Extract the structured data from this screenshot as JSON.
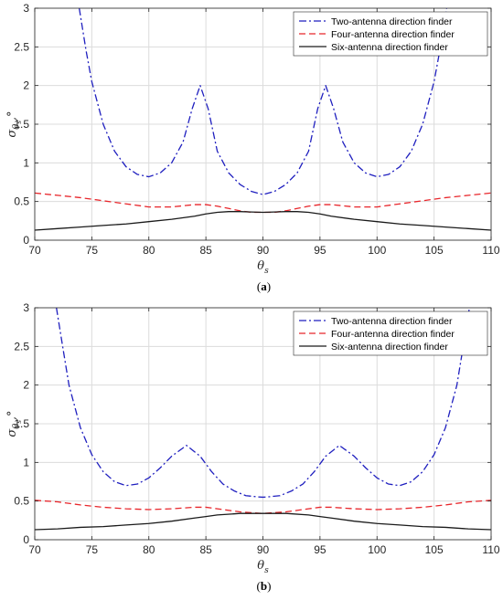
{
  "chart_data": [
    {
      "type": "line",
      "panel_label": "(a)",
      "xlabel": "θs",
      "ylabel": "σθs,°",
      "xlim": [
        70,
        110
      ],
      "ylim": [
        0,
        3
      ],
      "xticks": [
        70,
        75,
        80,
        85,
        90,
        95,
        100,
        105,
        110
      ],
      "yticks": [
        0,
        0.5,
        1,
        1.5,
        2,
        2.5,
        3
      ],
      "grid": true,
      "legend_position": "top-right",
      "series": [
        {
          "name": "Two-antenna direction finder",
          "color": "#1f1fbf",
          "style": "dashdot",
          "x": [
            73.9,
            74.5,
            75,
            76,
            77,
            78,
            79,
            80,
            81,
            82,
            83,
            83.8,
            84.5,
            85.2,
            86,
            87,
            88,
            89,
            90,
            91,
            92,
            93,
            94,
            94.8,
            95.5,
            96.2,
            97,
            98,
            99,
            100,
            101,
            102,
            103,
            104,
            105,
            105.5,
            106.1
          ],
          "values": [
            3.0,
            2.45,
            2.05,
            1.5,
            1.15,
            0.95,
            0.85,
            0.82,
            0.87,
            1.0,
            1.27,
            1.7,
            2.0,
            1.7,
            1.15,
            0.87,
            0.72,
            0.63,
            0.59,
            0.63,
            0.72,
            0.87,
            1.15,
            1.7,
            2.0,
            1.7,
            1.27,
            1.0,
            0.87,
            0.82,
            0.85,
            0.95,
            1.15,
            1.5,
            2.05,
            2.45,
            3.0
          ]
        },
        {
          "name": "Four-antenna direction finder",
          "color": "#e8262b",
          "style": "dashed",
          "x": [
            70,
            72,
            74,
            76,
            78,
            80,
            82,
            84,
            85,
            86,
            87,
            88,
            89,
            90,
            91,
            92,
            93,
            94,
            95,
            96,
            98,
            100,
            102,
            104,
            106,
            108,
            110
          ],
          "values": [
            0.61,
            0.58,
            0.55,
            0.51,
            0.47,
            0.43,
            0.43,
            0.46,
            0.46,
            0.44,
            0.41,
            0.38,
            0.36,
            0.36,
            0.36,
            0.38,
            0.41,
            0.44,
            0.46,
            0.46,
            0.43,
            0.43,
            0.47,
            0.51,
            0.55,
            0.58,
            0.61
          ]
        },
        {
          "name": "Six-antenna direction finder",
          "color": "#1a1a1a",
          "style": "solid",
          "x": [
            70,
            72,
            74,
            76,
            78,
            80,
            82,
            84,
            85,
            86,
            87,
            88,
            89,
            90,
            91,
            92,
            93,
            94,
            95,
            96,
            98,
            100,
            102,
            104,
            106,
            108,
            110
          ],
          "values": [
            0.13,
            0.15,
            0.17,
            0.19,
            0.21,
            0.24,
            0.27,
            0.31,
            0.34,
            0.36,
            0.37,
            0.37,
            0.365,
            0.36,
            0.365,
            0.37,
            0.37,
            0.36,
            0.34,
            0.31,
            0.27,
            0.24,
            0.21,
            0.19,
            0.17,
            0.15,
            0.13
          ]
        }
      ]
    },
    {
      "type": "line",
      "panel_label": "(b)",
      "xlabel": "θs",
      "ylabel": "σθs,°",
      "xlim": [
        70,
        110
      ],
      "ylim": [
        0,
        3
      ],
      "xticks": [
        70,
        75,
        80,
        85,
        90,
        95,
        100,
        105,
        110
      ],
      "yticks": [
        0,
        0.5,
        1,
        1.5,
        2,
        2.5,
        3
      ],
      "grid": true,
      "legend_position": "top-right",
      "series": [
        {
          "name": "Two-antenna direction finder",
          "color": "#1f1fbf",
          "style": "dashdot",
          "x": [
            71.9,
            72.5,
            73,
            74,
            75,
            76,
            77,
            78,
            79,
            80,
            81,
            82,
            83.3,
            84.5,
            85.5,
            86.5,
            87.5,
            88.5,
            89.5,
            90,
            90.5,
            91.5,
            92.5,
            93.5,
            94.5,
            95.5,
            96.7,
            98,
            99,
            100,
            101,
            102,
            103,
            104,
            105,
            106,
            107,
            107.5,
            108.1
          ],
          "values": [
            3.0,
            2.45,
            2.0,
            1.45,
            1.1,
            0.88,
            0.75,
            0.7,
            0.72,
            0.8,
            0.93,
            1.08,
            1.22,
            1.08,
            0.88,
            0.72,
            0.63,
            0.57,
            0.555,
            0.55,
            0.555,
            0.57,
            0.63,
            0.72,
            0.88,
            1.08,
            1.22,
            1.08,
            0.93,
            0.8,
            0.72,
            0.7,
            0.75,
            0.88,
            1.1,
            1.45,
            2.0,
            2.45,
            3.0
          ]
        },
        {
          "name": "Four-antenna direction finder",
          "color": "#e8262b",
          "style": "dashed",
          "x": [
            70,
            72,
            74,
            76,
            78,
            80,
            82,
            84,
            85,
            86,
            88,
            90,
            92,
            94,
            95,
            96,
            98,
            100,
            102,
            104,
            106,
            108,
            110
          ],
          "values": [
            0.51,
            0.49,
            0.45,
            0.42,
            0.4,
            0.39,
            0.4,
            0.42,
            0.42,
            0.4,
            0.36,
            0.34,
            0.36,
            0.4,
            0.42,
            0.42,
            0.4,
            0.39,
            0.4,
            0.42,
            0.45,
            0.49,
            0.51
          ]
        },
        {
          "name": "Six-antenna direction finder",
          "color": "#1a1a1a",
          "style": "solid",
          "x": [
            70,
            72,
            74,
            76,
            78,
            80,
            82,
            84,
            85,
            86,
            88,
            90,
            92,
            94,
            95,
            96,
            98,
            100,
            102,
            104,
            106,
            108,
            110
          ],
          "values": [
            0.13,
            0.14,
            0.16,
            0.17,
            0.19,
            0.21,
            0.24,
            0.28,
            0.3,
            0.32,
            0.34,
            0.34,
            0.34,
            0.32,
            0.3,
            0.28,
            0.24,
            0.21,
            0.19,
            0.17,
            0.16,
            0.14,
            0.13
          ]
        }
      ]
    }
  ]
}
